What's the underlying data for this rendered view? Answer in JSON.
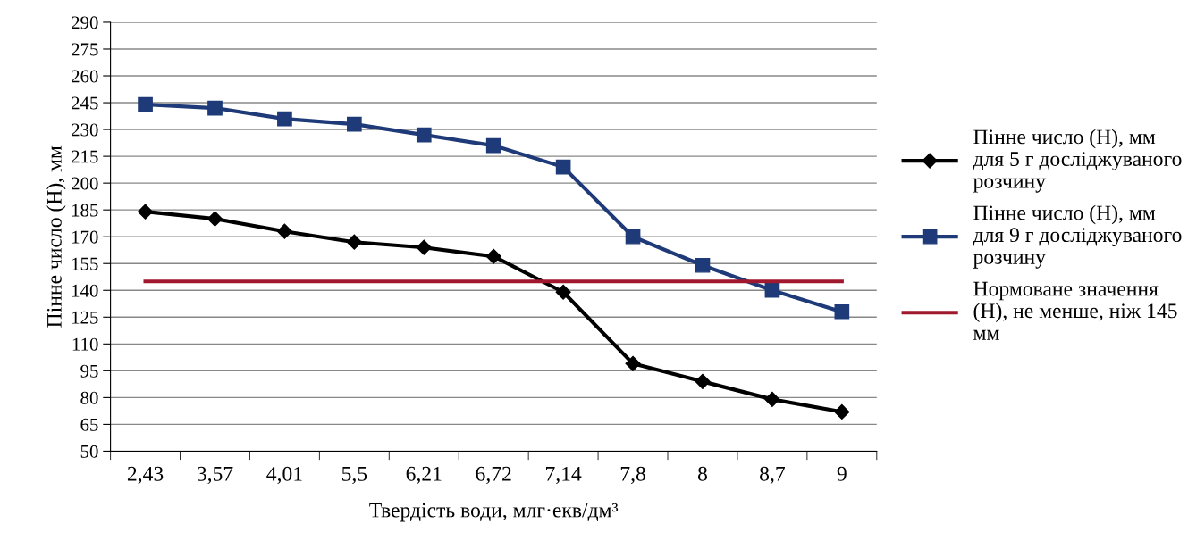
{
  "chart_data": {
    "type": "line",
    "xlabel": "Твердість води, млг·екв/дм³",
    "ylabel": "Пінне число (Н), мм",
    "categories": [
      "2,43",
      "3,57",
      "4,01",
      "5,5",
      "6,21",
      "6,72",
      "7,14",
      "7,8",
      "8",
      "8,7",
      "9"
    ],
    "series": [
      {
        "name": "Пінне число (Н), мм для 5 г досліджуваного розчину",
        "color": "#000000",
        "marker": "diamond",
        "values": [
          184,
          180,
          173,
          167,
          164,
          159,
          139,
          99,
          89,
          79,
          72
        ]
      },
      {
        "name": "Пінне число (Н), мм для 9 г досліджуваного розчину",
        "color": "#1f3a78",
        "marker": "square",
        "values": [
          244,
          242,
          236,
          233,
          227,
          221,
          209,
          170,
          154,
          140,
          128
        ]
      },
      {
        "name": "Нормоване значення (Н), не менше, ніж 145 мм",
        "color": "#a0182e",
        "marker": "none",
        "values": [
          145,
          145,
          145,
          145,
          145,
          145,
          145,
          145,
          145,
          145,
          145
        ]
      }
    ],
    "ylim": [
      50,
      290
    ],
    "yticks": [
      50,
      65,
      80,
      95,
      110,
      125,
      140,
      155,
      170,
      185,
      200,
      215,
      230,
      245,
      260,
      275,
      290
    ],
    "grid": "y",
    "legend": "right",
    "line_style": "solid"
  }
}
